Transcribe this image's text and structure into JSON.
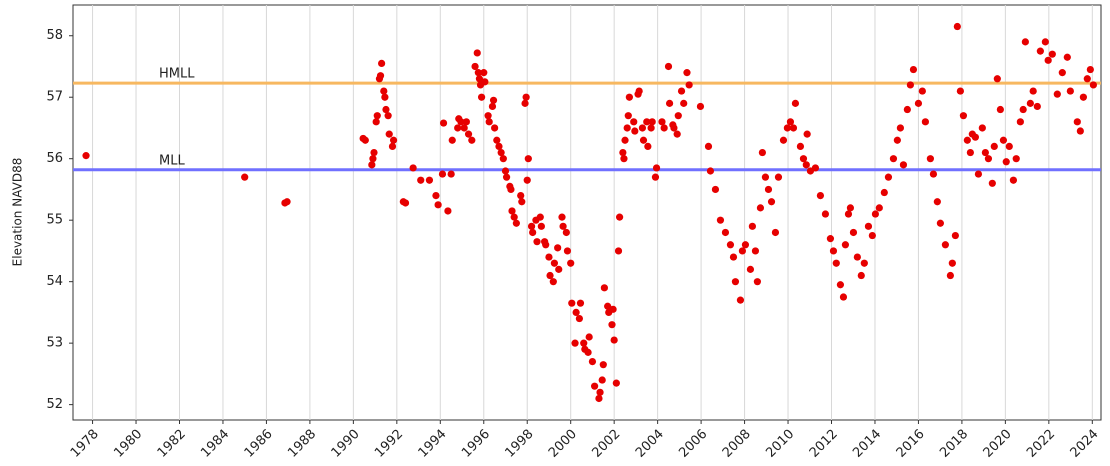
{
  "chart_data": {
    "type": "scatter",
    "ylabel": "Elevation NAVD88",
    "color": "#e60000",
    "grid": "x",
    "xlim": [
      1977.1,
      2024.4
    ],
    "ylim": [
      51.75,
      58.5
    ],
    "xticks": [
      1978,
      1980,
      1982,
      1984,
      1986,
      1988,
      1990,
      1992,
      1994,
      1996,
      1998,
      2000,
      2002,
      2004,
      2006,
      2008,
      2010,
      2012,
      2014,
      2016,
      2018,
      2020,
      2022,
      2024
    ],
    "yticks": [
      52,
      53,
      54,
      55,
      56,
      57,
      58
    ],
    "reference_lines": [
      {
        "label": "HMLL",
        "value": 57.23,
        "color": "#f7b860"
      },
      {
        "label": "MLL",
        "value": 55.82,
        "color": "#7070ff"
      }
    ],
    "x": [
      1977.7,
      1985.0,
      1986.85,
      1986.95,
      1990.45,
      1990.55,
      1990.85,
      1990.9,
      1990.95,
      1991.05,
      1991.1,
      1991.2,
      1991.25,
      1991.3,
      1991.4,
      1991.45,
      1991.5,
      1991.6,
      1991.65,
      1991.8,
      1991.85,
      1992.3,
      1992.4,
      1992.75,
      1993.1,
      1993.5,
      1993.8,
      1993.9,
      1994.1,
      1994.15,
      1994.35,
      1994.5,
      1994.55,
      1994.8,
      1994.85,
      1994.95,
      1995.1,
      1995.2,
      1995.3,
      1995.45,
      1995.6,
      1995.7,
      1995.75,
      1995.8,
      1995.85,
      1995.9,
      1996.0,
      1996.05,
      1996.2,
      1996.25,
      1996.4,
      1996.45,
      1996.5,
      1996.6,
      1996.7,
      1996.8,
      1996.9,
      1997.0,
      1997.05,
      1997.2,
      1997.25,
      1997.3,
      1997.4,
      1997.5,
      1997.7,
      1997.75,
      1997.9,
      1997.95,
      1998.0,
      1998.05,
      1998.2,
      1998.25,
      1998.4,
      1998.45,
      1998.6,
      1998.65,
      1998.8,
      1998.85,
      1999.0,
      1999.05,
      1999.2,
      1999.25,
      1999.4,
      1999.45,
      1999.6,
      1999.65,
      1999.8,
      1999.85,
      2000.0,
      2000.05,
      2000.2,
      2000.25,
      2000.4,
      2000.45,
      2000.6,
      2000.65,
      2000.8,
      2000.85,
      2001.0,
      2001.1,
      2001.3,
      2001.35,
      2001.45,
      2001.5,
      2001.55,
      2001.7,
      2001.75,
      2001.9,
      2001.95,
      2002.0,
      2002.1,
      2002.2,
      2002.25,
      2002.4,
      2002.45,
      2002.5,
      2002.6,
      2002.65,
      2002.7,
      2002.9,
      2002.95,
      2003.1,
      2003.15,
      2003.3,
      2003.35,
      2003.5,
      2003.55,
      2003.7,
      2003.75,
      2003.9,
      2003.95,
      2004.2,
      2004.3,
      2004.5,
      2004.55,
      2004.7,
      2004.75,
      2004.9,
      2004.95,
      2005.1,
      2005.2,
      2005.35,
      2005.45,
      2005.97,
      2006.34,
      2006.43,
      2006.66,
      2006.89,
      2007.12,
      2007.35,
      2007.49,
      2007.58,
      2007.81,
      2007.9,
      2008.04,
      2008.27,
      2008.36,
      2008.5,
      2008.59,
      2008.73,
      2008.82,
      2008.96,
      2009.1,
      2009.24,
      2009.42,
      2009.56,
      2009.79,
      2009.97,
      2010.11,
      2010.25,
      2010.34,
      2010.57,
      2010.71,
      2010.84,
      2010.88,
      2011.03,
      2011.26,
      2011.49,
      2011.72,
      2011.95,
      2012.09,
      2012.22,
      2012.41,
      2012.55,
      2012.64,
      2012.78,
      2012.87,
      2013.01,
      2013.19,
      2013.37,
      2013.51,
      2013.7,
      2013.88,
      2014.02,
      2014.2,
      2014.43,
      2014.62,
      2014.85,
      2015.03,
      2015.17,
      2015.31,
      2015.49,
      2015.63,
      2015.77,
      2016.0,
      2016.18,
      2016.32,
      2016.55,
      2016.69,
      2016.87,
      2017.01,
      2017.24,
      2017.47,
      2017.56,
      2017.7,
      2017.79,
      2017.93,
      2018.07,
      2018.25,
      2018.39,
      2018.48,
      2018.62,
      2018.76,
      2018.94,
      2019.08,
      2019.22,
      2019.4,
      2019.49,
      2019.63,
      2019.77,
      2019.91,
      2020.04,
      2020.18,
      2020.37,
      2020.5,
      2020.69,
      2020.82,
      2020.92,
      2021.15,
      2021.28,
      2021.47,
      2021.61,
      2021.84,
      2021.97,
      2022.16,
      2022.39,
      2022.62,
      2022.85,
      2022.99,
      2023.31,
      2023.45,
      2023.59,
      2023.77,
      2023.91,
      2024.05
    ],
    "values": [
      56.05,
      55.7,
      55.28,
      55.3,
      56.33,
      56.3,
      55.9,
      56.0,
      56.1,
      56.6,
      56.7,
      57.3,
      57.35,
      57.55,
      57.1,
      57.0,
      56.8,
      56.7,
      56.4,
      56.2,
      56.3,
      55.3,
      55.28,
      55.85,
      55.65,
      55.65,
      55.4,
      55.25,
      55.75,
      56.58,
      55.15,
      55.75,
      56.3,
      56.5,
      56.65,
      56.6,
      56.5,
      56.6,
      56.4,
      56.3,
      57.5,
      57.72,
      57.4,
      57.3,
      57.2,
      57.0,
      57.4,
      57.25,
      56.7,
      56.6,
      56.85,
      56.95,
      56.5,
      56.3,
      56.2,
      56.1,
      56.0,
      55.8,
      55.7,
      55.55,
      55.5,
      55.15,
      55.05,
      54.95,
      55.4,
      55.3,
      56.9,
      57.0,
      55.65,
      56.0,
      54.9,
      54.8,
      55.0,
      54.65,
      55.05,
      54.9,
      54.65,
      54.6,
      54.4,
      54.1,
      54.0,
      54.3,
      54.55,
      54.2,
      55.05,
      54.9,
      54.8,
      54.5,
      54.3,
      53.65,
      53.0,
      53.5,
      53.4,
      53.65,
      53.0,
      52.9,
      52.85,
      53.1,
      52.7,
      52.3,
      52.1,
      52.2,
      52.4,
      52.65,
      53.9,
      53.6,
      53.5,
      53.3,
      53.55,
      53.05,
      52.35,
      54.5,
      55.05,
      56.1,
      56.0,
      56.3,
      56.5,
      56.7,
      57.0,
      56.6,
      56.45,
      57.05,
      57.1,
      56.5,
      56.3,
      56.6,
      56.2,
      56.5,
      56.6,
      55.7,
      55.85,
      56.6,
      56.5,
      57.5,
      56.9,
      56.55,
      56.5,
      56.4,
      56.7,
      57.1,
      56.9,
      57.4,
      57.2,
      56.85,
      56.2,
      55.8,
      55.5,
      55.0,
      54.8,
      54.6,
      54.4,
      54.0,
      53.7,
      54.5,
      54.6,
      54.2,
      54.9,
      54.5,
      54.0,
      55.2,
      56.1,
      55.7,
      55.5,
      55.3,
      54.8,
      55.7,
      56.3,
      56.5,
      56.6,
      56.5,
      56.9,
      56.2,
      56.0,
      55.9,
      56.4,
      55.8,
      55.85,
      55.4,
      55.1,
      54.7,
      54.5,
      54.3,
      53.95,
      53.75,
      54.6,
      55.1,
      55.2,
      54.8,
      54.4,
      54.1,
      54.3,
      54.9,
      54.75,
      55.1,
      55.2,
      55.45,
      55.7,
      56.0,
      56.3,
      56.5,
      55.9,
      56.8,
      57.2,
      57.45,
      56.9,
      57.1,
      56.6,
      56.0,
      55.75,
      55.3,
      54.95,
      54.6,
      54.1,
      54.3,
      54.75,
      58.15,
      57.1,
      56.7,
      56.3,
      56.1,
      56.4,
      56.35,
      55.75,
      56.5,
      56.1,
      56.0,
      55.6,
      56.2,
      57.3,
      56.8,
      56.3,
      55.95,
      56.2,
      55.65,
      56.0,
      56.6,
      56.8,
      57.9,
      56.9,
      57.1,
      56.85,
      57.75,
      57.9,
      57.6,
      57.7,
      57.05,
      57.4,
      57.65,
      57.1,
      56.6,
      56.45,
      57.0,
      57.3,
      57.45,
      57.2
    ]
  }
}
